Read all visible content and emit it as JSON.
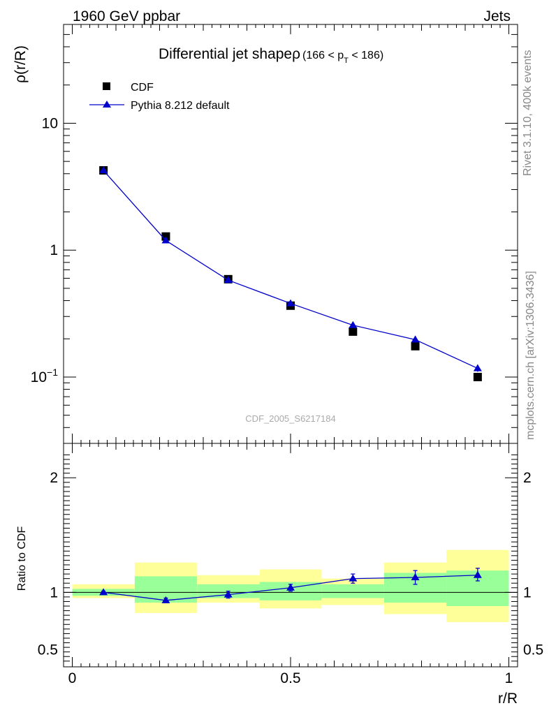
{
  "header": {
    "left": "1960 GeV ppbar",
    "right": "Jets"
  },
  "side_labels": {
    "top": "Rivet 3.1.10,  400k events",
    "bottom": "mcplots.cern.ch [arXiv:1306.3436]"
  },
  "chart_data": [
    {
      "type": "line",
      "title": "Differential jet shape",
      "title_rho": "ρ",
      "title_range": {
        "open": "(166 < p",
        "sub": "T",
        "close": " < 186)"
      },
      "ylabel": "ρ(r/R)",
      "xlabel": "",
      "yscale": "log",
      "ylim": [
        0.03,
        60
      ],
      "xlim": [
        -0.02,
        1.02
      ],
      "yticks": [
        {
          "v": 10,
          "label": "10"
        },
        {
          "v": 1,
          "label": "1"
        },
        {
          "v": 0.1,
          "label": "10",
          "sup": "−1"
        }
      ],
      "watermark": "CDF_2005_S6217184",
      "legend": [
        {
          "name": "CDF",
          "marker": "square",
          "color": "#000000"
        },
        {
          "name": "Pythia 8.212 default",
          "marker": "triangle",
          "color": "#0000cc"
        }
      ],
      "bin_edges": [
        0,
        0.143,
        0.286,
        0.429,
        0.571,
        0.714,
        0.857,
        1.0
      ],
      "x": [
        0.0714,
        0.2143,
        0.3571,
        0.5,
        0.6429,
        0.7857,
        0.9286
      ],
      "series": [
        {
          "name": "CDF",
          "values": [
            4.25,
            1.28,
            0.59,
            0.365,
            0.228,
            0.175,
            0.1
          ]
        },
        {
          "name": "Pythia 8.212 default",
          "values": [
            4.24,
            1.19,
            0.58,
            0.38,
            0.256,
            0.197,
            0.117
          ],
          "err_lo": [
            4.18,
            1.17,
            0.57,
            0.372,
            0.249,
            0.187,
            0.11
          ],
          "err_hi": [
            4.3,
            1.21,
            0.59,
            0.388,
            0.263,
            0.211,
            0.125
          ]
        }
      ]
    },
    {
      "type": "line",
      "ylabel": "Ratio to CDF",
      "xlabel": "r/R",
      "ylim": [
        0.35,
        2.3
      ],
      "xlim": [
        -0.02,
        1.02
      ],
      "yticks": [
        {
          "v": 2,
          "label": "2"
        },
        {
          "v": 1,
          "label": "1"
        },
        {
          "v": 0.5,
          "label": "0.5"
        }
      ],
      "xticks": [
        {
          "v": 0,
          "label": "0"
        },
        {
          "v": 0.5,
          "label": "0.5"
        },
        {
          "v": 1,
          "label": "1"
        }
      ],
      "bin_edges": [
        0,
        0.143,
        0.286,
        0.429,
        0.571,
        0.714,
        0.857,
        1.0
      ],
      "band_stat": {
        "lo": [
          0.97,
          0.91,
          0.95,
          0.93,
          0.95,
          0.91,
          0.88
        ],
        "hi": [
          1.03,
          1.14,
          1.07,
          1.09,
          1.07,
          1.17,
          1.19
        ],
        "color": "#99ff99"
      },
      "band_total": {
        "lo": [
          0.95,
          0.82,
          0.91,
          0.86,
          0.89,
          0.81,
          0.74
        ],
        "hi": [
          1.07,
          1.26,
          1.15,
          1.2,
          1.12,
          1.26,
          1.37
        ],
        "color": "#ffff99"
      },
      "x": [
        0.0714,
        0.2143,
        0.3571,
        0.5,
        0.6429,
        0.7857,
        0.9286
      ],
      "series": [
        {
          "name": "Pythia 8.212 default",
          "values": [
            1.0,
            0.93,
            0.98,
            1.04,
            1.12,
            1.13,
            1.15
          ],
          "err_lo": [
            0.99,
            0.91,
            0.95,
            1.01,
            1.08,
            1.07,
            1.1
          ],
          "err_hi": [
            1.01,
            0.95,
            1.01,
            1.07,
            1.16,
            1.19,
            1.21
          ]
        }
      ]
    }
  ]
}
